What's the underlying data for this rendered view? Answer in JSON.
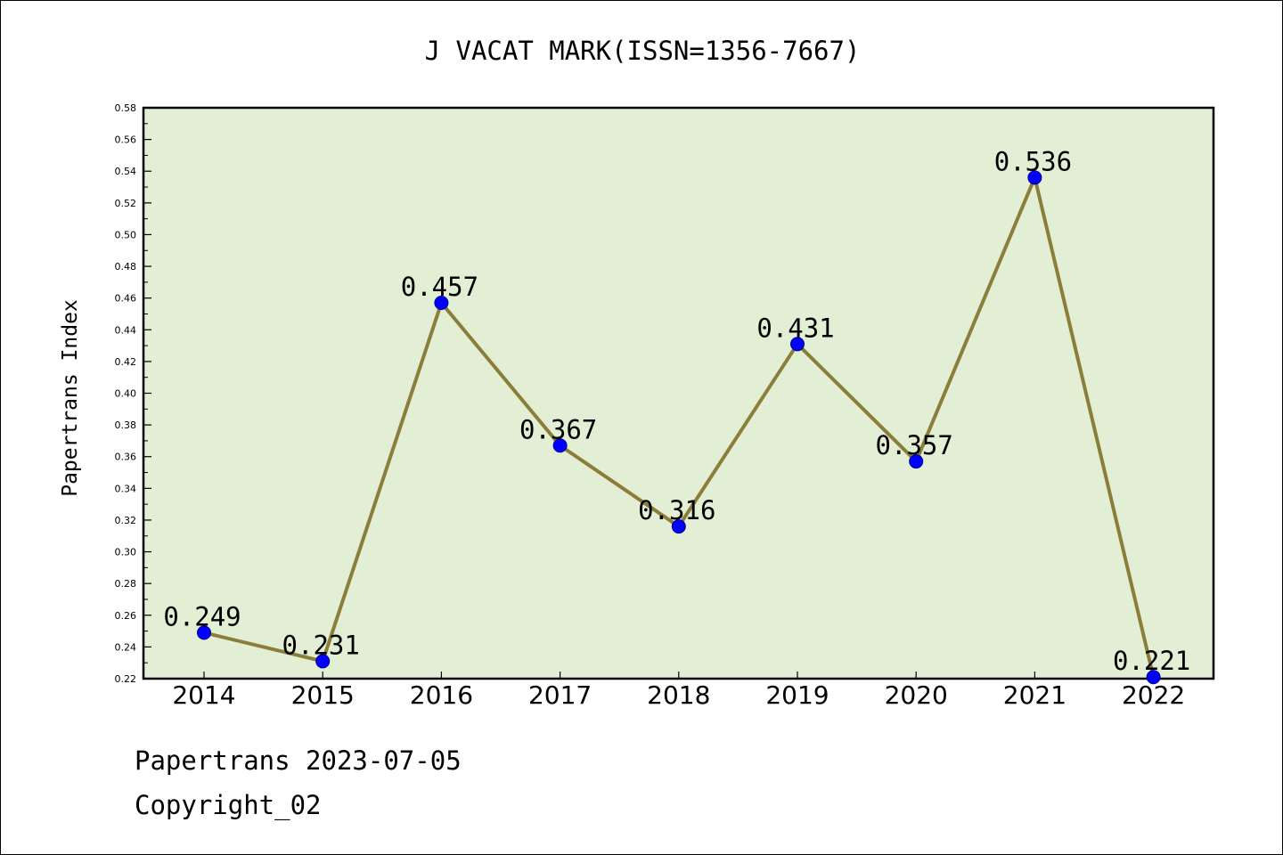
{
  "colors": {
    "plot_background": "#e2efd5",
    "line": "#8b7d3a",
    "marker": "#0000ff",
    "marker_edge": "#00008b",
    "text": "#000000"
  },
  "chart_data": {
    "type": "line",
    "title": "J VACAT MARK(ISSN=1356-7667)",
    "xlabel": "",
    "ylabel": "Papertrans Index",
    "x": [
      "2014",
      "2015",
      "2016",
      "2017",
      "2018",
      "2019",
      "2020",
      "2021",
      "2022"
    ],
    "values": [
      0.249,
      0.231,
      0.457,
      0.367,
      0.316,
      0.431,
      0.357,
      0.536,
      0.221
    ],
    "data_labels": [
      "0.249",
      "0.231",
      "0.457",
      "0.367",
      "0.316",
      "0.431",
      "0.357",
      "0.536",
      "0.221"
    ],
    "ylim": [
      0.22,
      0.58
    ],
    "y_ticks": [
      "0.22",
      "0.24",
      "0.26",
      "0.28",
      "0.30",
      "0.32",
      "0.34",
      "0.36",
      "0.38",
      "0.40",
      "0.42",
      "0.44",
      "0.46",
      "0.48",
      "0.50",
      "0.52",
      "0.54",
      "0.56",
      "0.58"
    ],
    "grid": false,
    "legend": "none"
  },
  "footer": {
    "source": "Papertrans 2023-07-05",
    "copyright": "Copyright_02"
  }
}
